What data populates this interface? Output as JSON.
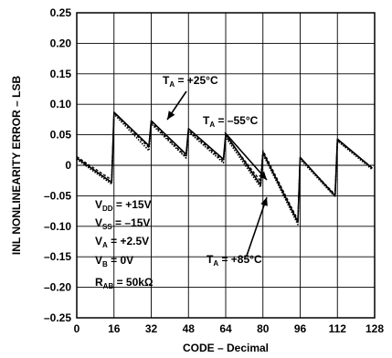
{
  "chart_data": {
    "type": "line",
    "title": "",
    "xlabel": "CODE – Decimal",
    "ylabel": "INL NONLINEARITY ERROR – LSB",
    "xlim": [
      0,
      128
    ],
    "ylim": [
      -0.25,
      0.25
    ],
    "grid": true,
    "x_ticks": [
      "0",
      "16",
      "32",
      "48",
      "64",
      "80",
      "96",
      "112",
      "128"
    ],
    "y_ticks": [
      "0.25",
      "0.20",
      "0.15",
      "0.10",
      "0.05",
      "0",
      "–0.05",
      "–0.10",
      "–0.15",
      "–0.20",
      "–0.25"
    ],
    "series": [
      {
        "name": "TA = +25°C",
        "x": [
          0,
          15,
          16,
          31,
          32,
          47,
          48,
          63,
          64,
          79,
          80,
          95,
          96,
          111,
          112,
          127
        ],
        "y": [
          0.012,
          -0.028,
          0.087,
          0.032,
          0.073,
          0.018,
          0.06,
          0.01,
          0.051,
          -0.032,
          0.021,
          -0.093,
          0.013,
          -0.05,
          0.043,
          -0.005
        ]
      },
      {
        "name": "TA = –55°C",
        "x": [
          0,
          15,
          16,
          31,
          32,
          47,
          48,
          63,
          64,
          79,
          80,
          95,
          96,
          111,
          112,
          127
        ],
        "y": [
          0.014,
          -0.024,
          0.086,
          0.029,
          0.07,
          0.014,
          0.057,
          0.007,
          0.048,
          -0.026,
          0.024,
          -0.09,
          0.012,
          -0.048,
          0.041,
          -0.004
        ]
      },
      {
        "name": "TA = +85°C",
        "x": [
          0,
          15,
          16,
          31,
          32,
          47,
          48,
          63,
          64,
          79,
          80,
          95,
          96,
          111,
          112,
          127
        ],
        "y": [
          0.01,
          -0.031,
          0.084,
          0.024,
          0.068,
          0.012,
          0.055,
          0.004,
          0.046,
          -0.036,
          0.018,
          -0.097,
          0.01,
          -0.052,
          0.04,
          -0.007
        ]
      }
    ],
    "annotations": {
      "ta25": {
        "main": "T",
        "sub": "A",
        "rest": " = +25°C"
      },
      "ta55": {
        "main": "T",
        "sub": "A",
        "rest": " = –55°C"
      },
      "ta85": {
        "main": "T",
        "sub": "A",
        "rest": " = +85°C"
      },
      "conditions": [
        {
          "main": "V",
          "sub": "DD",
          "rest": " = +15V"
        },
        {
          "main": "V",
          "sub": "SS",
          "rest": " = –15V"
        },
        {
          "main": "V",
          "sub": "A",
          "rest": " = +2.5V"
        },
        {
          "main": "V",
          "sub": "B",
          "rest": " = 0V"
        },
        {
          "main": "R",
          "sub": "AB",
          "rest": " = 50kΩ"
        }
      ]
    }
  }
}
